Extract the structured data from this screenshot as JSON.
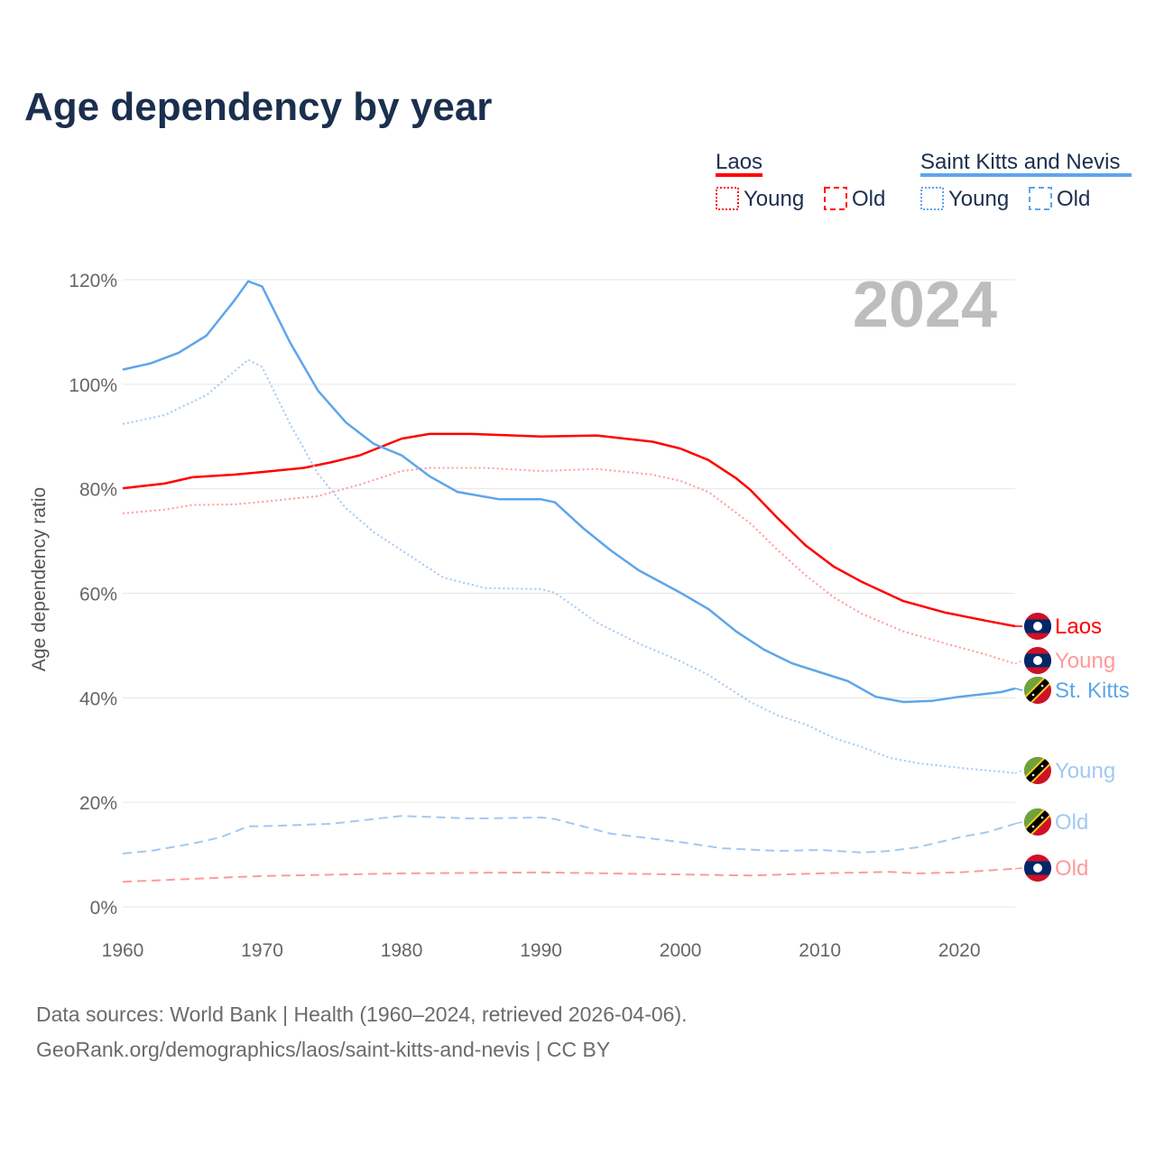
{
  "title": "Age dependency by year",
  "year_watermark": "2024",
  "legend": {
    "groups": [
      {
        "name": "Laos",
        "color": "#ff0000",
        "items": [
          "Young",
          "Old"
        ]
      },
      {
        "name": "Saint Kitts and Nevis",
        "color": "#5ea5ea",
        "items": [
          "Young",
          "Old"
        ]
      }
    ]
  },
  "source": {
    "line1": "Data sources: World Bank | Health (1960–2024, retrieved 2026-04-06).",
    "line2": "GeoRank.org/demographics/laos/saint-kitts-and-nevis | CC BY"
  },
  "chart_data": {
    "type": "line",
    "title": "Age dependency by year",
    "xlabel": "",
    "ylabel": "Age dependency ratio",
    "xlim": [
      1960,
      2024
    ],
    "ylim": [
      0,
      120
    ],
    "xticks": [
      "1960",
      "1970",
      "1980",
      "1990",
      "2000",
      "2010",
      "2020"
    ],
    "yticks": [
      "0%",
      "20%",
      "40%",
      "60%",
      "80%",
      "100%",
      "120%"
    ],
    "grid": true,
    "series": [
      {
        "name": "Laos",
        "end_label": "Laos",
        "flag": "laos",
        "style": "solid",
        "color": "#ff0000",
        "x": [
          1960,
          1963,
          1965,
          1968,
          1970,
          1973,
          1975,
          1977,
          1980,
          1982,
          1985,
          1990,
          1994,
          1998,
          2000,
          2002,
          2004,
          2005,
          2007,
          2009,
          2011,
          2013,
          2016,
          2019,
          2022,
          2024
        ],
        "y": [
          80.1,
          81,
          82.2,
          82.7,
          83.2,
          84,
          85.1,
          86.4,
          89.6,
          90.5,
          90.5,
          90,
          90.2,
          89,
          87.7,
          85.5,
          82,
          79.8,
          74.3,
          69.1,
          65.1,
          62.2,
          58.5,
          56.3,
          54.7,
          53.7
        ]
      },
      {
        "name": "Laos Young",
        "end_label": "Young",
        "flag": "laos",
        "style": "dotted",
        "color": "#ff9a9a",
        "x": [
          1960,
          1963,
          1965,
          1968,
          1970,
          1974,
          1977,
          1980,
          1982,
          1986,
          1990,
          1994,
          1998,
          2000,
          2002,
          2005,
          2007,
          2009,
          2011,
          2013,
          2016,
          2019,
          2022,
          2024
        ],
        "y": [
          75.3,
          76,
          76.9,
          77,
          77.5,
          78.6,
          80.8,
          83.4,
          84,
          84,
          83.4,
          83.8,
          82.7,
          81.5,
          79.4,
          73.4,
          68.2,
          63.4,
          59.2,
          56.1,
          52.7,
          50.4,
          48.2,
          46.5
        ]
      },
      {
        "name": "Saint Kitts and Nevis",
        "end_label": "St. Kitts",
        "flag": "skn",
        "style": "solid",
        "color": "#5ea5ea",
        "x": [
          1960,
          1962,
          1964,
          1966,
          1968,
          1969,
          1970,
          1972,
          1974,
          1976,
          1978,
          1980,
          1982,
          1984,
          1987,
          1990,
          1991,
          1993,
          1995,
          1997,
          2000,
          2002,
          2004,
          2006,
          2008,
          2010,
          2012,
          2014,
          2016,
          2018,
          2020,
          2023,
          2024
        ],
        "y": [
          102.8,
          104,
          106,
          109.3,
          116,
          119.7,
          118.7,
          108,
          98.8,
          92.7,
          88.6,
          86.4,
          82.4,
          79.4,
          78,
          78,
          77.4,
          72.5,
          68.2,
          64.4,
          60.1,
          57,
          52.7,
          49.2,
          46.6,
          44.9,
          43.2,
          40.2,
          39.2,
          39.4,
          40.2,
          41.1,
          41.8
        ]
      },
      {
        "name": "Saint Kitts and Nevis Young",
        "end_label": "Young",
        "flag": "skn",
        "style": "dotted",
        "color": "#a3c9f1",
        "x": [
          1960,
          1963,
          1966,
          1969,
          1970,
          1972,
          1974,
          1976,
          1978,
          1980,
          1983,
          1986,
          1990,
          1991,
          1994,
          1997,
          2000,
          2002,
          2005,
          2007,
          2009,
          2011,
          2013,
          2015,
          2017,
          2020,
          2024
        ],
        "y": [
          92.4,
          94.1,
          97.9,
          104.7,
          103.3,
          92.4,
          82.9,
          76.3,
          71.7,
          68.2,
          63,
          61,
          60.8,
          60.1,
          54.4,
          50.4,
          47,
          44.4,
          39.2,
          36.6,
          34.9,
          32.3,
          30.6,
          28.5,
          27.5,
          26.6,
          25.6
        ]
      },
      {
        "name": "Saint Kitts and Nevis Old",
        "end_label": "Old",
        "flag": "skn",
        "style": "dashed",
        "color": "#a3c9f1",
        "x": [
          1960,
          1962,
          1965,
          1967,
          1969,
          1971,
          1975,
          1980,
          1985,
          1990,
          1991,
          1995,
          2000,
          2003,
          2007,
          2010,
          2013,
          2015,
          2017,
          2020,
          2022,
          2024
        ],
        "y": [
          10.2,
          10.7,
          12.1,
          13.3,
          15.4,
          15.5,
          15.9,
          17.4,
          16.9,
          17.1,
          16.8,
          14,
          12.4,
          11.2,
          10.7,
          10.9,
          10.4,
          10.7,
          11.4,
          13.3,
          14.3,
          15.9
        ]
      },
      {
        "name": "Laos Old",
        "end_label": "Old",
        "flag": "laos",
        "style": "dashed",
        "color": "#ff9a9a",
        "x": [
          1960,
          1970,
          1980,
          1990,
          2000,
          2005,
          2010,
          2015,
          2017,
          2020,
          2024
        ],
        "y": [
          4.8,
          5.9,
          6.4,
          6.6,
          6.2,
          6.0,
          6.4,
          6.7,
          6.4,
          6.6,
          7.3
        ]
      }
    ]
  }
}
